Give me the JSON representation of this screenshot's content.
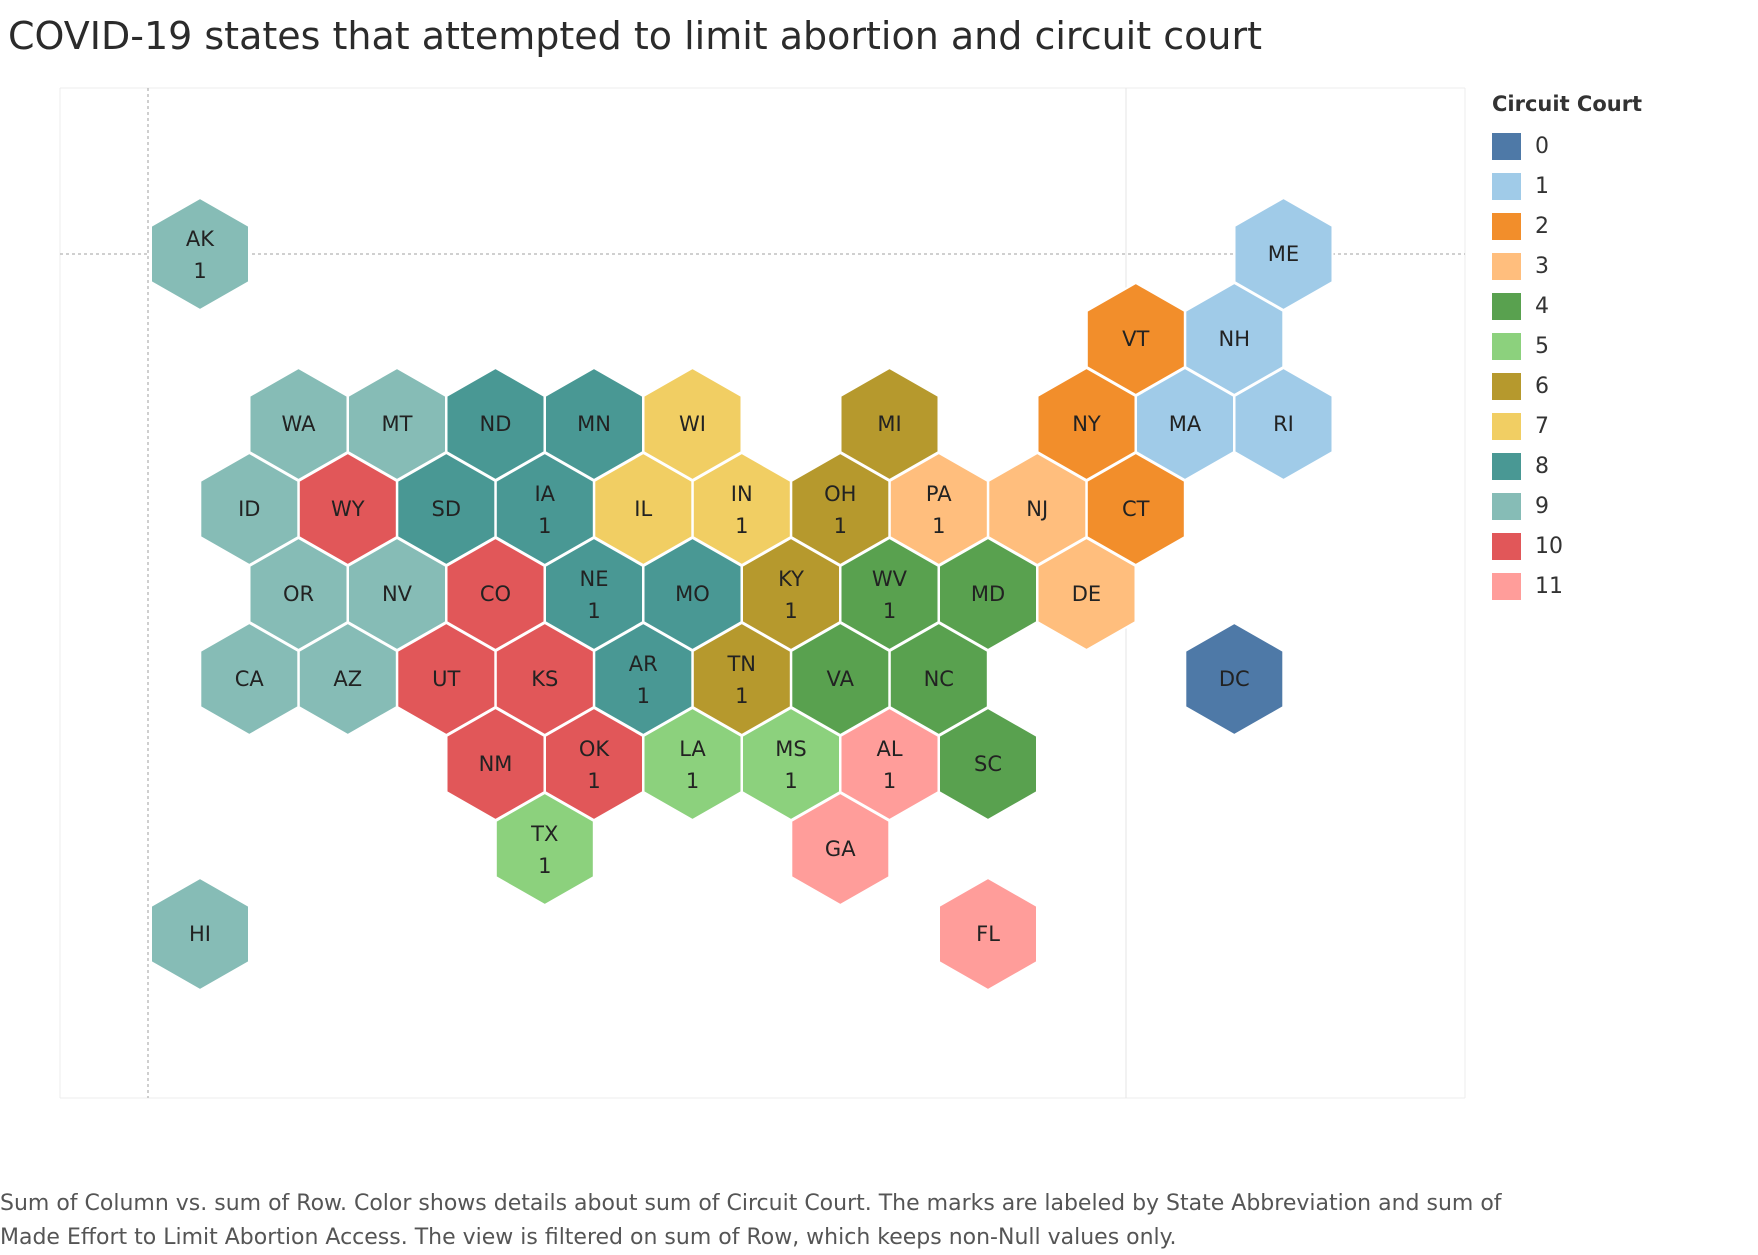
{
  "title": "COVID-19 states that attempted to limit abortion and circuit court",
  "legend": {
    "title": "Circuit Court",
    "items": [
      {
        "label": "0",
        "color": "#4e79a7"
      },
      {
        "label": "1",
        "color": "#a0cbe8"
      },
      {
        "label": "2",
        "color": "#f28e2b"
      },
      {
        "label": "3",
        "color": "#ffbe7d"
      },
      {
        "label": "4",
        "color": "#59a14f"
      },
      {
        "label": "5",
        "color": "#8cd17d"
      },
      {
        "label": "6",
        "color": "#b6992d"
      },
      {
        "label": "7",
        "color": "#f1ce63"
      },
      {
        "label": "8",
        "color": "#499894"
      },
      {
        "label": "9",
        "color": "#86bcb6"
      },
      {
        "label": "10",
        "color": "#e15759"
      },
      {
        "label": "11",
        "color": "#ff9d9a"
      }
    ]
  },
  "chart_data": {
    "type": "hexmap",
    "color_field": "Circuit Court",
    "states": [
      {
        "abbr": "AK",
        "column": 1,
        "row": 1,
        "circuit": 9,
        "effort": "1"
      },
      {
        "abbr": "ME",
        "column": 12,
        "row": 1,
        "circuit": 1,
        "effort": ""
      },
      {
        "abbr": "VT",
        "column": 11,
        "row": 2,
        "circuit": 2,
        "effort": ""
      },
      {
        "abbr": "NH",
        "column": 12,
        "row": 2,
        "circuit": 1,
        "effort": ""
      },
      {
        "abbr": "WA",
        "column": 2,
        "row": 3,
        "circuit": 9,
        "effort": ""
      },
      {
        "abbr": "MT",
        "column": 3,
        "row": 3,
        "circuit": 9,
        "effort": ""
      },
      {
        "abbr": "ND",
        "column": 4,
        "row": 3,
        "circuit": 8,
        "effort": ""
      },
      {
        "abbr": "MN",
        "column": 5,
        "row": 3,
        "circuit": 8,
        "effort": ""
      },
      {
        "abbr": "WI",
        "column": 6,
        "row": 3,
        "circuit": 7,
        "effort": ""
      },
      {
        "abbr": "MI",
        "column": 8,
        "row": 3,
        "circuit": 6,
        "effort": ""
      },
      {
        "abbr": "NY",
        "column": 10,
        "row": 3,
        "circuit": 2,
        "effort": ""
      },
      {
        "abbr": "MA",
        "column": 11,
        "row": 3,
        "circuit": 1,
        "effort": ""
      },
      {
        "abbr": "RI",
        "column": 12,
        "row": 3,
        "circuit": 1,
        "effort": ""
      },
      {
        "abbr": "ID",
        "column": 2,
        "row": 4,
        "circuit": 9,
        "effort": ""
      },
      {
        "abbr": "WY",
        "column": 3,
        "row": 4,
        "circuit": 10,
        "effort": ""
      },
      {
        "abbr": "SD",
        "column": 4,
        "row": 4,
        "circuit": 8,
        "effort": ""
      },
      {
        "abbr": "IA",
        "column": 5,
        "row": 4,
        "circuit": 8,
        "effort": "1"
      },
      {
        "abbr": "IL",
        "column": 6,
        "row": 4,
        "circuit": 7,
        "effort": ""
      },
      {
        "abbr": "IN",
        "column": 7,
        "row": 4,
        "circuit": 7,
        "effort": "1"
      },
      {
        "abbr": "OH",
        "column": 8,
        "row": 4,
        "circuit": 6,
        "effort": "1"
      },
      {
        "abbr": "PA",
        "column": 9,
        "row": 4,
        "circuit": 3,
        "effort": "1"
      },
      {
        "abbr": "NJ",
        "column": 10,
        "row": 4,
        "circuit": 3,
        "effort": ""
      },
      {
        "abbr": "CT",
        "column": 11,
        "row": 4,
        "circuit": 2,
        "effort": ""
      },
      {
        "abbr": "OR",
        "column": 2,
        "row": 5,
        "circuit": 9,
        "effort": ""
      },
      {
        "abbr": "NV",
        "column": 3,
        "row": 5,
        "circuit": 9,
        "effort": ""
      },
      {
        "abbr": "CO",
        "column": 4,
        "row": 5,
        "circuit": 10,
        "effort": ""
      },
      {
        "abbr": "NE",
        "column": 5,
        "row": 5,
        "circuit": 8,
        "effort": "1"
      },
      {
        "abbr": "MO",
        "column": 6,
        "row": 5,
        "circuit": 8,
        "effort": ""
      },
      {
        "abbr": "KY",
        "column": 7,
        "row": 5,
        "circuit": 6,
        "effort": "1"
      },
      {
        "abbr": "WV",
        "column": 8,
        "row": 5,
        "circuit": 4,
        "effort": "1"
      },
      {
        "abbr": "MD",
        "column": 9,
        "row": 5,
        "circuit": 4,
        "effort": ""
      },
      {
        "abbr": "DE",
        "column": 10,
        "row": 5,
        "circuit": 3,
        "effort": ""
      },
      {
        "abbr": "CA",
        "column": 2,
        "row": 6,
        "circuit": 9,
        "effort": ""
      },
      {
        "abbr": "AZ",
        "column": 3,
        "row": 6,
        "circuit": 9,
        "effort": ""
      },
      {
        "abbr": "UT",
        "column": 4,
        "row": 6,
        "circuit": 10,
        "effort": ""
      },
      {
        "abbr": "KS",
        "column": 5,
        "row": 6,
        "circuit": 10,
        "effort": ""
      },
      {
        "abbr": "AR",
        "column": 6,
        "row": 6,
        "circuit": 8,
        "effort": "1"
      },
      {
        "abbr": "TN",
        "column": 7,
        "row": 6,
        "circuit": 6,
        "effort": "1"
      },
      {
        "abbr": "VA",
        "column": 8,
        "row": 6,
        "circuit": 4,
        "effort": ""
      },
      {
        "abbr": "NC",
        "column": 9,
        "row": 6,
        "circuit": 4,
        "effort": ""
      },
      {
        "abbr": "DC",
        "column": 12,
        "row": 6,
        "circuit": 0,
        "effort": ""
      },
      {
        "abbr": "NM",
        "column": 4,
        "row": 7,
        "circuit": 10,
        "effort": ""
      },
      {
        "abbr": "OK",
        "column": 5,
        "row": 7,
        "circuit": 10,
        "effort": "1"
      },
      {
        "abbr": "LA",
        "column": 6,
        "row": 7,
        "circuit": 5,
        "effort": "1"
      },
      {
        "abbr": "MS",
        "column": 7,
        "row": 7,
        "circuit": 5,
        "effort": "1"
      },
      {
        "abbr": "AL",
        "column": 8,
        "row": 7,
        "circuit": 11,
        "effort": "1"
      },
      {
        "abbr": "SC",
        "column": 9,
        "row": 7,
        "circuit": 4,
        "effort": ""
      },
      {
        "abbr": "TX",
        "column": 5,
        "row": 8,
        "circuit": 5,
        "effort": "1"
      },
      {
        "abbr": "GA",
        "column": 8,
        "row": 8,
        "circuit": 11,
        "effort": ""
      },
      {
        "abbr": "HI",
        "column": 1,
        "row": 9,
        "circuit": 9,
        "effort": ""
      },
      {
        "abbr": "FL",
        "column": 9,
        "row": 9,
        "circuit": 11,
        "effort": ""
      }
    ]
  },
  "caption": "Sum of Column vs. sum of Row.  Color shows details about sum of Circuit Court.  The marks are labeled by State Abbreviation and sum of Made Effort to Limit Abortion Access. The view is filtered on sum of Row, which keeps non-Null values only."
}
